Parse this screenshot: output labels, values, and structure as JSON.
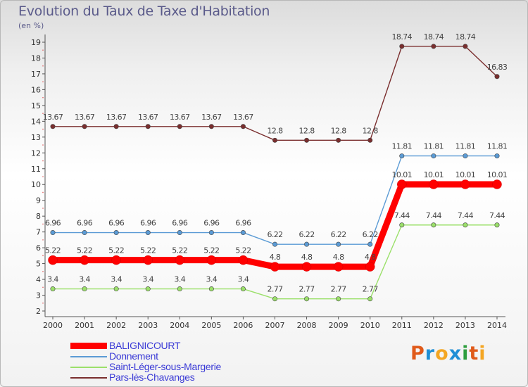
{
  "title": "Evolution du Taux de Taxe d'Habitation",
  "unit_label": "(en %)",
  "logo": {
    "letters": [
      "P",
      "r",
      "o",
      "x",
      "i",
      "t",
      "i"
    ],
    "colors": [
      "#e05a1a",
      "#1f8fd6",
      "#f4a623",
      "#1f8fd6",
      "#2e9e3e",
      "#e05a1a",
      "#f4a623"
    ]
  },
  "chart_data": {
    "type": "line",
    "title": "Evolution du Taux de Taxe d'Habitation",
    "ylabel": "(en %)",
    "xlabel": "",
    "x": [
      "2000",
      "2001",
      "2002",
      "2003",
      "2004",
      "2005",
      "2006",
      "2007",
      "2008",
      "2009",
      "2010",
      "2011",
      "2012",
      "2013",
      "2014"
    ],
    "ylim": [
      2,
      19
    ],
    "yticks": [
      "2",
      "3",
      "4",
      "5",
      "6",
      "7",
      "8",
      "9",
      "10",
      "11",
      "12",
      "13",
      "14",
      "15",
      "16",
      "17",
      "18",
      "19"
    ],
    "grid": false,
    "legend_position": "bottom-left",
    "series": [
      {
        "name": "BALIGNICOURT",
        "color": "#ff0000",
        "values": [
          5.22,
          5.22,
          5.22,
          5.22,
          5.22,
          5.22,
          5.22,
          4.8,
          4.8,
          4.8,
          4.8,
          10.01,
          10.01,
          10.01,
          10.01
        ],
        "labels": [
          "5.22",
          "5.22",
          "5.22",
          "5.22",
          "5.22",
          "5.22",
          "5.22",
          "4.8",
          "4.8",
          "4.8",
          "4.8",
          "10.01",
          "10.01",
          "10.01",
          "10.01"
        ]
      },
      {
        "name": "Donnement",
        "color": "#5b9bd5",
        "values": [
          6.96,
          6.96,
          6.96,
          6.96,
          6.96,
          6.96,
          6.96,
          6.22,
          6.22,
          6.22,
          6.22,
          11.81,
          11.81,
          11.81,
          11.81
        ],
        "labels": [
          "6.96",
          "6.96",
          "6.96",
          "6.96",
          "6.96",
          "6.96",
          "6.96",
          "6.22",
          "6.22",
          "6.22",
          "6.22",
          "11.81",
          "11.81",
          "11.81",
          "11.81"
        ]
      },
      {
        "name": "Saint-Léger-sous-Margerie",
        "color": "#9be06a",
        "values": [
          3.4,
          3.4,
          3.4,
          3.4,
          3.4,
          3.4,
          3.4,
          2.77,
          2.77,
          2.77,
          2.77,
          7.44,
          7.44,
          7.44,
          7.44
        ],
        "labels": [
          "3.4",
          "3.4",
          "3.4",
          "3.4",
          "3.4",
          "3.4",
          "3.4",
          "2.77",
          "2.77",
          "2.77",
          "2.77",
          "7.44",
          "7.44",
          "7.44",
          "7.44"
        ]
      },
      {
        "name": "Pars-lès-Chavanges",
        "color": "#7a2e2e",
        "values": [
          13.67,
          13.67,
          13.67,
          13.67,
          13.67,
          13.67,
          13.67,
          12.8,
          12.8,
          12.8,
          12.8,
          18.74,
          18.74,
          18.74,
          16.83
        ],
        "labels": [
          "13.67",
          "13.67",
          "13.67",
          "13.67",
          "13.67",
          "13.67",
          "13.67",
          "12.8",
          "12.8",
          "12.8",
          "12.8",
          "18.74",
          "18.74",
          "18.74",
          "16.83"
        ]
      }
    ]
  }
}
